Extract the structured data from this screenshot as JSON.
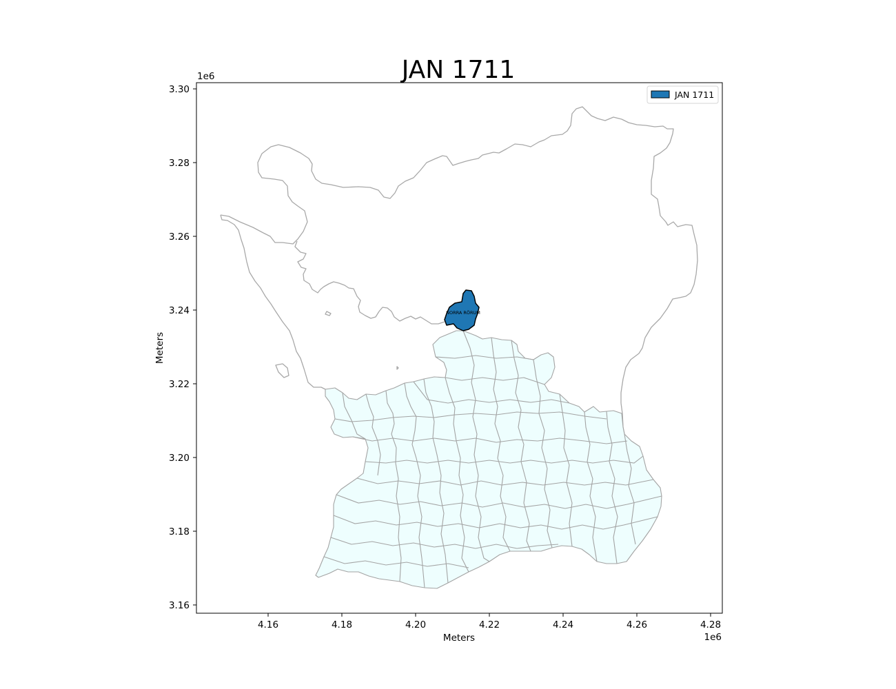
{
  "title": "JAN 1711",
  "xlabel": "Meters",
  "ylabel": "Meters",
  "x_offset_text": "1e6",
  "y_offset_text": "1e6",
  "x_ticks": [
    "4.16",
    "4.18",
    "4.20",
    "4.22",
    "4.24",
    "4.26",
    "4.28"
  ],
  "y_ticks": [
    "3.30",
    "3.28",
    "3.26",
    "3.24",
    "3.22",
    "3.20",
    "3.18",
    "3.16"
  ],
  "legend": {
    "label": "JAN 1711",
    "placement": "upper-right"
  },
  "highlight": {
    "name": "NORRA RÖRUM",
    "color": "#1f77b4",
    "edge_color": "#000000"
  },
  "colors": {
    "parish_fill": "#eefefe",
    "parish_edge": "#a3a3a3",
    "background": "#ffffff"
  },
  "extent": {
    "x": [
      4.1405,
      4.2825
    ],
    "y": [
      3.1575,
      3.3015
    ],
    "unit": "1e6 m"
  }
}
